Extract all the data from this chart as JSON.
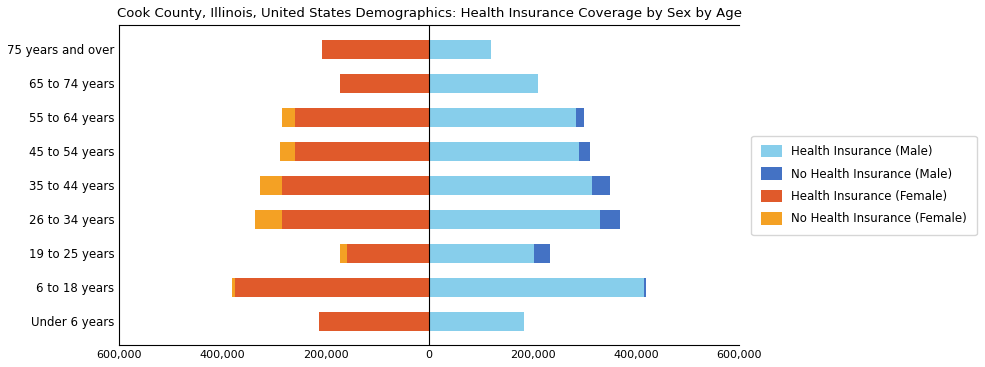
{
  "title": "Cook County, Illinois, United States Demographics: Health Insurance Coverage by Sex by Age",
  "age_groups": [
    "Under 6 years",
    "6 to 18 years",
    "19 to 25 years",
    "26 to 34 years",
    "35 to 44 years",
    "45 to 54 years",
    "55 to 64 years",
    "65 to 74 years",
    "75 years and over"
  ],
  "health_ins_male": [
    183000,
    415000,
    203000,
    330000,
    315000,
    290000,
    285000,
    210000,
    120000
  ],
  "no_health_ins_male": [
    0,
    4000,
    30000,
    40000,
    35000,
    22000,
    15000,
    0,
    0
  ],
  "health_ins_female": [
    213000,
    375000,
    160000,
    285000,
    285000,
    260000,
    260000,
    172000,
    208000
  ],
  "no_health_ins_female": [
    0,
    7000,
    13000,
    52000,
    42000,
    28000,
    25000,
    0,
    0
  ],
  "xlim": [
    -600000,
    600000
  ],
  "xticks": [
    -600000,
    -400000,
    -200000,
    0,
    200000,
    400000,
    600000
  ],
  "xtick_labels": [
    "600,000",
    "400,000",
    "200,000",
    "0",
    "200,000",
    "400,000",
    "600,000"
  ],
  "color_health_male": "#87CEEB",
  "color_no_health_male": "#4472C4",
  "color_health_female": "#E05A2B",
  "color_no_health_female": "#F4A124",
  "legend_labels": [
    "Health Insurance (Male)",
    "No Health Insurance (Male)",
    "Health Insurance (Female)",
    "No Health Insurance (Female)"
  ],
  "legend_colors": [
    "#87CEEB",
    "#4472C4",
    "#E05A2B",
    "#F4A124"
  ],
  "bar_height": 0.55,
  "title_fontsize": 9.5,
  "tick_fontsize": 8,
  "label_fontsize": 8.5
}
